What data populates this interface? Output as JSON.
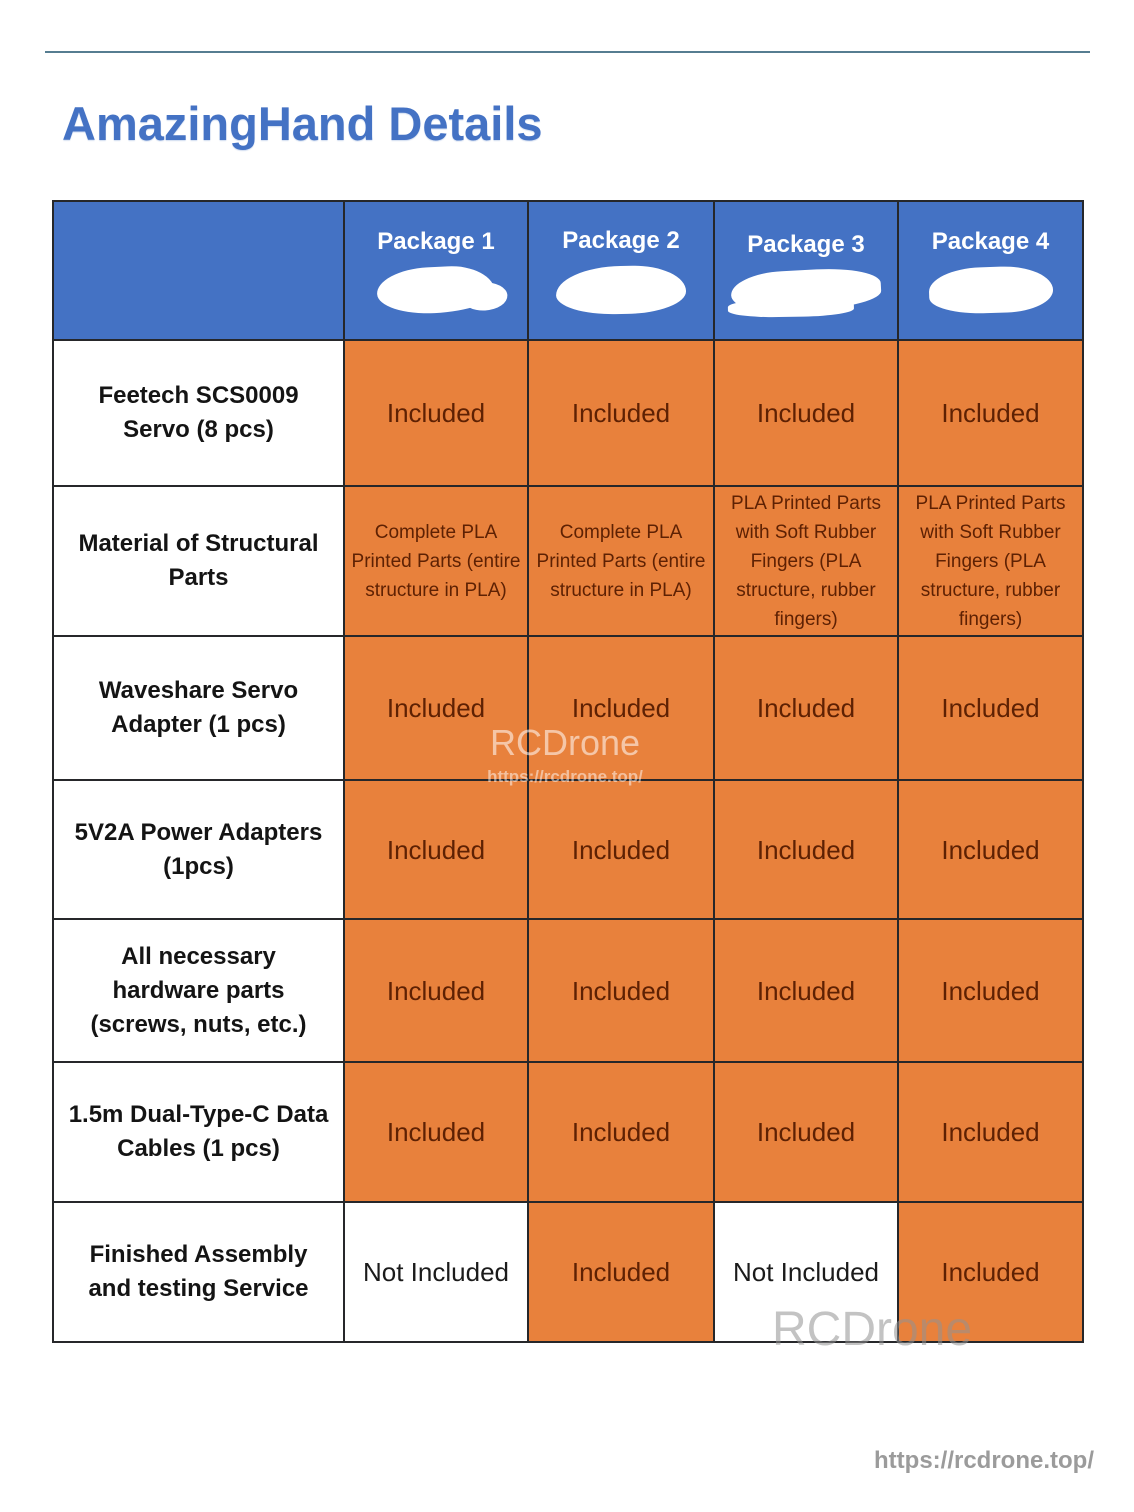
{
  "page": {
    "title": "AmazingHand Details",
    "footer_url": "https://rcdrone.top/"
  },
  "watermarks": {
    "center_name": "RCDrone",
    "center_url": "https://rcdrone.top/",
    "bottom_name": "RCDrone"
  },
  "colors": {
    "header_blue": "#4472C4",
    "cell_orange": "#E8813C",
    "cell_text_dark": "#5E2103",
    "title_blue": "#4472C4",
    "border": "#26272A",
    "divider_blue": "#567D91",
    "watermark_gray": "#9B9B9B"
  },
  "table": {
    "column_headers": [
      "Package 1",
      "Package 2",
      "Package 3",
      "Package 4"
    ],
    "rows": [
      {
        "label": "Feetech SCS0009 Servo (8 pcs)",
        "cells": [
          {
            "text": "Included"
          },
          {
            "text": "Included"
          },
          {
            "text": "Included"
          },
          {
            "text": "Included"
          }
        ]
      },
      {
        "label": "Material of Structural Parts",
        "cells": [
          {
            "text": "Complete PLA Printed Parts (entire structure in PLA)"
          },
          {
            "text": "Complete PLA Printed Parts (entire structure in PLA)"
          },
          {
            "text": "PLA Printed Parts with Soft Rubber Fingers (PLA structure, rubber fingers)"
          },
          {
            "text": "PLA Printed Parts with Soft Rubber Fingers (PLA structure, rubber fingers)"
          }
        ]
      },
      {
        "label": "Waveshare Servo Adapter (1 pcs)",
        "cells": [
          {
            "text": "Included"
          },
          {
            "text": "Included"
          },
          {
            "text": "Included"
          },
          {
            "text": "Included"
          }
        ]
      },
      {
        "label": "5V2A Power Adapters (1pcs)",
        "cells": [
          {
            "text": "Included"
          },
          {
            "text": "Included"
          },
          {
            "text": "Included"
          },
          {
            "text": "Included"
          }
        ]
      },
      {
        "label": "All necessary hardware parts (screws, nuts, etc.)",
        "cells": [
          {
            "text": "Included"
          },
          {
            "text": "Included"
          },
          {
            "text": "Included"
          },
          {
            "text": "Included"
          }
        ]
      },
      {
        "label": "1.5m Dual-Type-C Data Cables (1 pcs)",
        "cells": [
          {
            "text": "Included"
          },
          {
            "text": "Included"
          },
          {
            "text": "Included"
          },
          {
            "text": "Included"
          }
        ]
      },
      {
        "label": "Finished Assembly and testing Service",
        "cells": [
          {
            "text": "Not Included"
          },
          {
            "text": "Included"
          },
          {
            "text": "Not Included"
          },
          {
            "text": "Included"
          }
        ]
      }
    ]
  }
}
